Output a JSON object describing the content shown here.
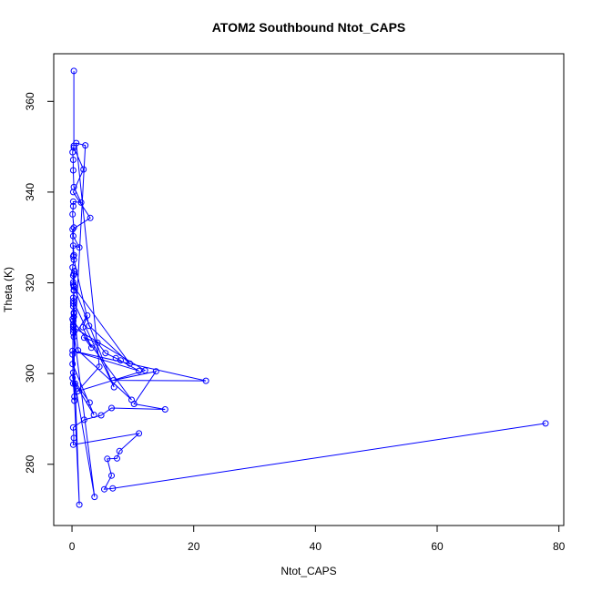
{
  "chart_data": {
    "type": "line",
    "title": "ATOM2 Southbound Ntot_CAPS",
    "xlabel": "Ntot_CAPS",
    "ylabel": "Theta (K)",
    "xlim": [
      -3,
      80.8
    ],
    "ylim": [
      266.5,
      370.5
    ],
    "xticks": [
      0,
      20,
      40,
      60,
      80
    ],
    "yticks": [
      280,
      300,
      320,
      340,
      360
    ],
    "grid": false,
    "legend": "none",
    "series": [
      {
        "color": "#0000ff",
        "marker": "open-circle",
        "points": [
          [
            0.3,
            366.7
          ],
          [
            0.3,
            350.2
          ],
          [
            0.1,
            348.8
          ],
          [
            0.2,
            347.1
          ],
          [
            0.2,
            344.8
          ],
          [
            0.3,
            341.1
          ],
          [
            1.5,
            337.7
          ],
          [
            0.2,
            337.9
          ],
          [
            0.2,
            336.9
          ],
          [
            0.1,
            335.1
          ],
          [
            0.3,
            332.2
          ],
          [
            0.2,
            330.3
          ],
          [
            1.2,
            327.8
          ],
          [
            0.2,
            328.2
          ],
          [
            0.3,
            326.1
          ],
          [
            0.3,
            325.1
          ],
          [
            0.1,
            323.4
          ],
          [
            0.2,
            321.6
          ],
          [
            0.2,
            320.1
          ],
          [
            0.3,
            318.3
          ],
          [
            0.2,
            316.7
          ],
          [
            0.2,
            314.8
          ],
          [
            0.3,
            313.2
          ],
          [
            0.1,
            312.0
          ],
          [
            0.2,
            310.8
          ],
          [
            0.2,
            309.6
          ],
          [
            0.3,
            308.1
          ],
          [
            2.5,
            312.8
          ],
          [
            1.8,
            310.2
          ],
          [
            3.2,
            305.7
          ],
          [
            2.0,
            307.9
          ],
          [
            4.2,
            306.8
          ],
          [
            5.5,
            304.5
          ],
          [
            8.0,
            302.9
          ],
          [
            7.2,
            303.4
          ],
          [
            11.0,
            300.6
          ],
          [
            0.1,
            305.0
          ],
          [
            22.0,
            298.4
          ],
          [
            6.8,
            298.5
          ],
          [
            13.8,
            300.5
          ],
          [
            10.2,
            293.3
          ],
          [
            15.3,
            292.1
          ],
          [
            6.5,
            292.4
          ],
          [
            4.8,
            290.8
          ],
          [
            2.0,
            289.8
          ],
          [
            0.2,
            288.1
          ],
          [
            0.3,
            285.8
          ],
          [
            0.2,
            284.3
          ],
          [
            11.0,
            286.8
          ],
          [
            7.8,
            282.9
          ],
          [
            7.4,
            281.3
          ],
          [
            5.8,
            281.2
          ],
          [
            6.5,
            277.5
          ],
          [
            5.3,
            274.5
          ],
          [
            6.7,
            274.7
          ],
          [
            77.8,
            289.0
          ]
        ]
      },
      {
        "color": "#0000ff",
        "marker": "open-circle",
        "points": [
          [
            0.3,
            349.8
          ],
          [
            1.9,
            345.0
          ],
          [
            0.2,
            340.0
          ],
          [
            3.0,
            334.3
          ],
          [
            0.1,
            331.8
          ],
          [
            0.2,
            325.8
          ],
          [
            2.8,
            310.5
          ],
          [
            9.5,
            302.2
          ],
          [
            0.3,
            319.1
          ],
          [
            6.9,
            297.0
          ],
          [
            0.2,
            316.0
          ],
          [
            1.0,
            305.1
          ],
          [
            9.8,
            294.2
          ],
          [
            0.2,
            311.6
          ],
          [
            0.1,
            302.1
          ],
          [
            3.6,
            290.9
          ],
          [
            0.5,
            297.8
          ],
          [
            1.2,
            271.1
          ],
          [
            0.2,
            300.2
          ],
          [
            3.7,
            272.8
          ],
          [
            0.2,
            310.2
          ],
          [
            12.0,
            300.7
          ],
          [
            0.9,
            296.1
          ],
          [
            4.5,
            301.5
          ],
          [
            0.7,
            350.8
          ],
          [
            2.2,
            350.3
          ],
          [
            0.1,
            299.0
          ],
          [
            2.9,
            293.6
          ]
        ]
      },
      {
        "color": "#0000ff",
        "marker": "open-circle",
        "points": [
          [
            0.2,
            315.4
          ],
          [
            0.2,
            309.0
          ],
          [
            0.1,
            304.2
          ],
          [
            0.2,
            297.8
          ],
          [
            0.4,
            294.9
          ],
          [
            0.4,
            294.0
          ],
          [
            0.3,
            319.3
          ],
          [
            0.4,
            322.6
          ],
          [
            0.3,
            322.0
          ],
          [
            0.2,
            319.6
          ],
          [
            0.3,
            318.4
          ],
          [
            0.3,
            313.4
          ],
          [
            0.2,
            310.4
          ],
          [
            0.3,
            312.5
          ]
        ]
      }
    ]
  }
}
